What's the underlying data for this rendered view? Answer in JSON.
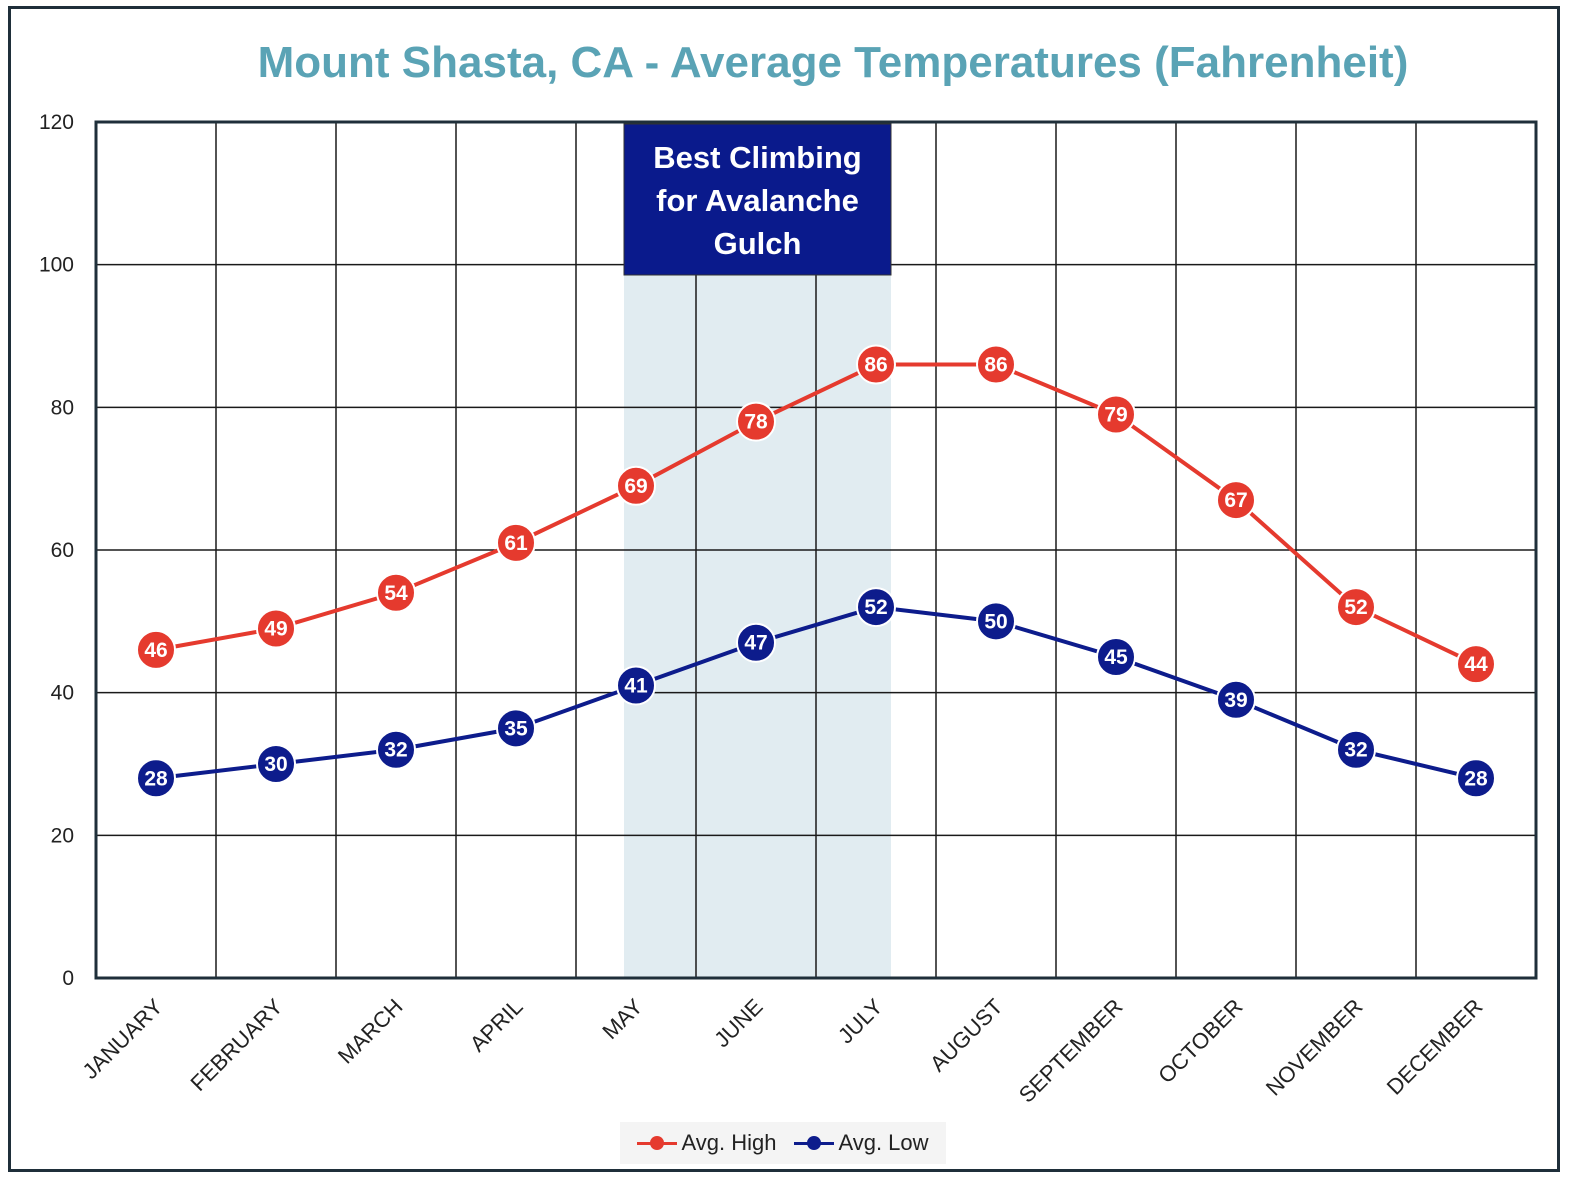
{
  "chart_data": {
    "type": "line",
    "title": "Mount Shasta, CA - Average Temperatures (Fahrenheit)",
    "categories": [
      "JANUARY",
      "FEBRUARY",
      "MARCH",
      "APRIL",
      "MAY",
      "JUNE",
      "JULY",
      "AUGUST",
      "SEPTEMBER",
      "OCTOBER",
      "NOVEMBER",
      "DECEMBER"
    ],
    "series": [
      {
        "name": "Avg. High",
        "color": "#e53a2e",
        "values": [
          46,
          49,
          54,
          61,
          69,
          78,
          86,
          86,
          79,
          67,
          52,
          44
        ]
      },
      {
        "name": "Avg. Low",
        "color": "#0d1c8c",
        "values": [
          28,
          30,
          32,
          35,
          41,
          47,
          52,
          50,
          45,
          39,
          32,
          28
        ]
      }
    ],
    "ylim": [
      0,
      120
    ],
    "yticks": [
      0,
      20,
      40,
      60,
      80,
      100,
      120
    ],
    "xlabel": "",
    "ylabel": "",
    "grid": true,
    "legend": "bottom-center",
    "annotation": {
      "text_lines": [
        "Best Climbing",
        "for Avalanche",
        "Gulch"
      ],
      "months": [
        "MAY",
        "JUNE",
        "JULY"
      ],
      "box_color": "#0a1a8c",
      "band_color": "#e1ecf1"
    }
  }
}
